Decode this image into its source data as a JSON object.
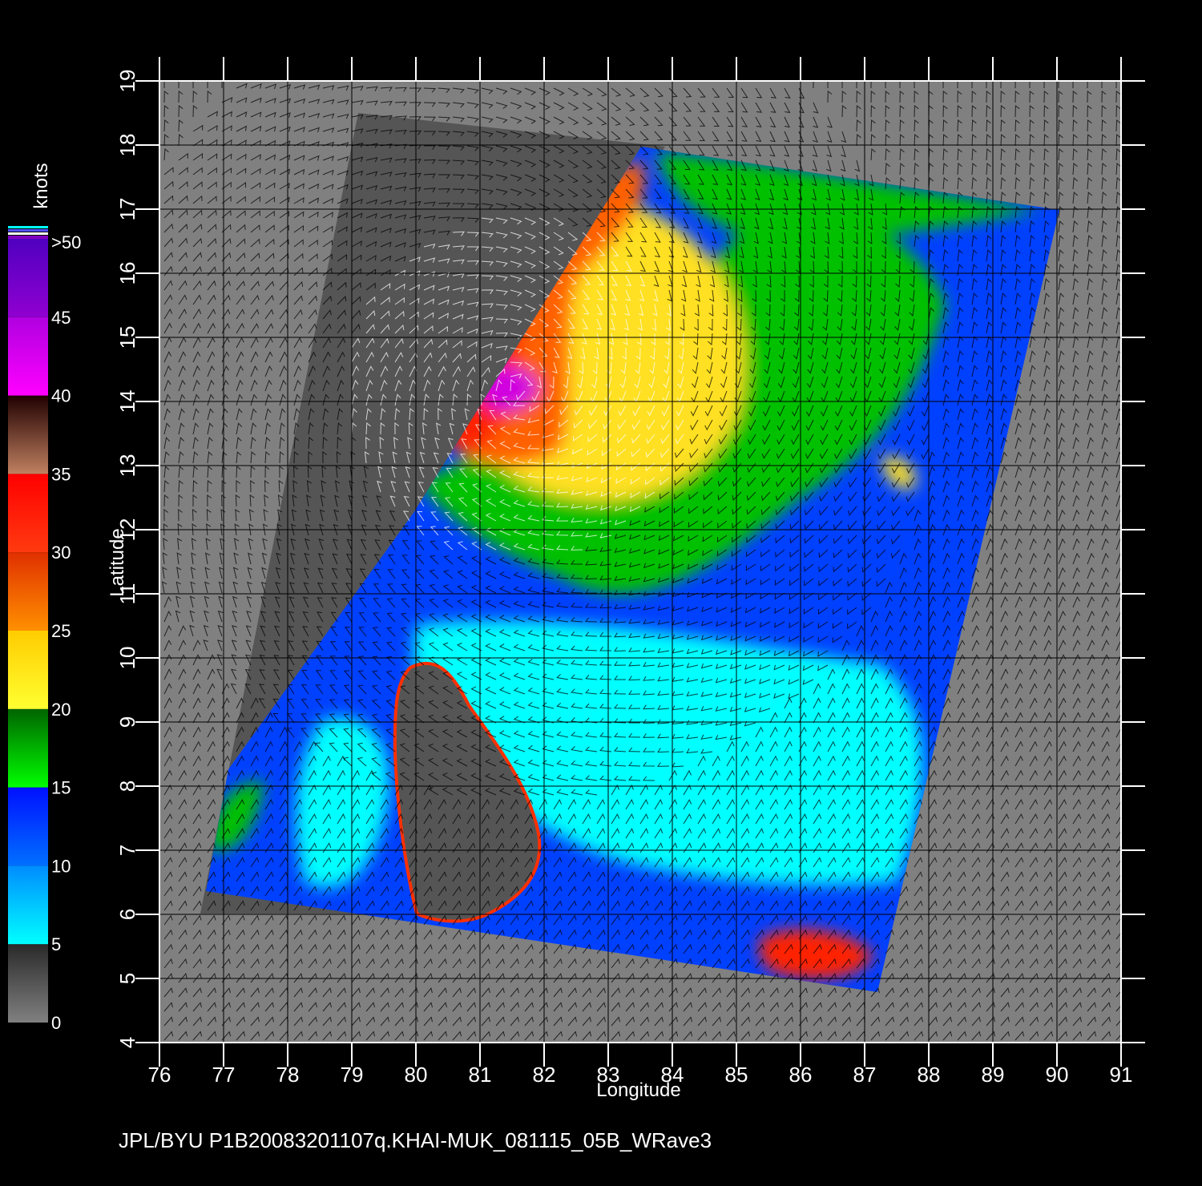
{
  "footer": "JPL/BYU  P1B20083201107q.KHAI-MUK_081115_05B_WRave3",
  "x_axis": {
    "title": "Longitude",
    "ticks": [
      "76",
      "77",
      "78",
      "79",
      "80",
      "81",
      "82",
      "83",
      "84",
      "85",
      "86",
      "87",
      "88",
      "89",
      "90",
      "91"
    ]
  },
  "y_axis": {
    "title": "Latitude",
    "ticks": [
      "4",
      "5",
      "6",
      "7",
      "8",
      "9",
      "10",
      "11",
      "12",
      "13",
      "14",
      "15",
      "16",
      "17",
      "18",
      "19"
    ]
  },
  "colorbar": {
    "unit": "knots",
    "labels": [
      "0",
      "5",
      "10",
      "15",
      "20",
      "25",
      "30",
      "35",
      "40",
      "45",
      ">50"
    ],
    "bands": [
      {
        "from": 0,
        "to": 5,
        "top": "#2a2a2a",
        "bottom": "#808080"
      },
      {
        "from": 5,
        "to": 10,
        "top": "#008cff",
        "bottom": "#00ffff"
      },
      {
        "from": 10,
        "to": 15,
        "top": "#0010ff",
        "bottom": "#0070ff"
      },
      {
        "from": 15,
        "to": 20,
        "top": "#006400",
        "bottom": "#00ff00"
      },
      {
        "from": 20,
        "to": 25,
        "top": "#ffcc00",
        "bottom": "#ffff30"
      },
      {
        "from": 25,
        "to": 30,
        "top": "#e03000",
        "bottom": "#ff9000"
      },
      {
        "from": 30,
        "to": 35,
        "top": "#ff0000",
        "bottom": "#ff3a10"
      },
      {
        "from": 35,
        "to": 40,
        "top": "#200000",
        "bottom": "#c08060"
      },
      {
        "from": 40,
        "to": 45,
        "top": "#b000e0",
        "bottom": "#ff00ff"
      },
      {
        "from": 45,
        "to": 50,
        "top": "#5000c0",
        "bottom": "#9000d0"
      }
    ]
  },
  "colors": {
    "background": "#000000",
    "no_data": "#808080",
    "land": "#555555",
    "calm": "#00ffff",
    "weak": "#0040ff",
    "moderate": "#00c000",
    "fresh": "#ffe020",
    "strong": "#ff6000",
    "gale": "#ff2000",
    "storm": "#d000e0"
  }
}
